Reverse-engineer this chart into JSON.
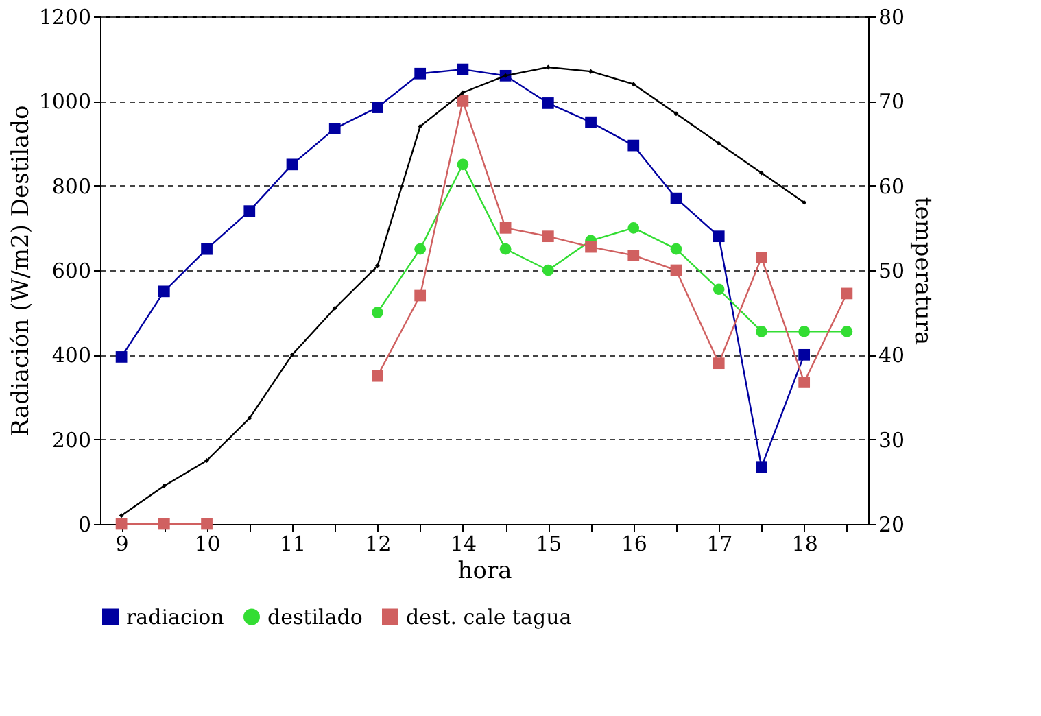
{
  "chart_data": {
    "type": "line",
    "xlabel": "hora",
    "ylabel": "Radiación (W/m2) Destilado",
    "y2label": "temperatura",
    "categories": [
      "9",
      null,
      "10",
      null,
      "11",
      null,
      "12",
      null,
      "14",
      null,
      "15",
      null,
      "16",
      null,
      "17",
      null,
      "18",
      null
    ],
    "ylim": [
      0,
      1200
    ],
    "yticks": [
      0,
      200,
      400,
      600,
      800,
      1000,
      1200
    ],
    "y2lim": [
      20,
      80
    ],
    "y2ticks": [
      20,
      30,
      40,
      50,
      60,
      70,
      80
    ],
    "grid": "y",
    "legend": "bottom",
    "series": [
      {
        "name": "radiacion",
        "color": "#0000a0",
        "marker": "square",
        "values": [
          395,
          550,
          650,
          740,
          850,
          935,
          985,
          1065,
          1075,
          1060,
          995,
          950,
          895,
          770,
          680,
          135,
          400,
          null
        ]
      },
      {
        "name": "destilado",
        "color": "#33dd33",
        "marker": "circle",
        "values": [
          null,
          null,
          null,
          null,
          null,
          null,
          500,
          650,
          850,
          650,
          600,
          670,
          700,
          650,
          555,
          455,
          455,
          455
        ]
      },
      {
        "name": "dest. cale tagua",
        "color": "#d06060",
        "marker": "square",
        "values": [
          0,
          0,
          0,
          null,
          null,
          null,
          350,
          540,
          1000,
          700,
          680,
          655,
          635,
          600,
          380,
          630,
          335,
          545
        ]
      },
      {
        "color": "#000000",
        "marker": "diamond",
        "axis": "y2",
        "values": [
          21,
          24.5,
          27.5,
          32.5,
          40,
          45.5,
          50.5,
          67,
          71,
          73,
          74,
          73.5,
          72,
          68.5,
          65,
          61.5,
          58,
          null
        ]
      }
    ]
  }
}
